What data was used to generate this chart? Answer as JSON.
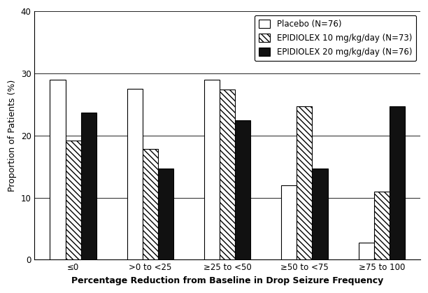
{
  "categories": [
    "≤0",
    ">0 to <25",
    "≥25 to <50",
    "≥50 to <75",
    "≥75 to 100"
  ],
  "placebo": [
    29.0,
    27.5,
    29.0,
    12.0,
    2.7
  ],
  "epidiolex_10": [
    19.2,
    17.8,
    27.4,
    24.7,
    11.0
  ],
  "epidiolex_20": [
    23.7,
    14.7,
    22.4,
    14.7,
    24.7
  ],
  "legend_labels": [
    "Placebo (N=76)",
    "EPIDIOLEX 10 mg/kg/day (N=73)",
    "EPIDIOLEX 20 mg/kg/day (N=76)"
  ],
  "ylabel": "Proportion of Patients (%)",
  "xlabel": "Percentage Reduction from Baseline in Drop Seizure Frequency",
  "ylim": [
    0,
    40
  ],
  "yticks": [
    0,
    10,
    20,
    30,
    40
  ],
  "bar_width": 0.2,
  "placebo_color": "#ffffff",
  "epidiolex_20_color": "#111111",
  "edge_color": "#000000",
  "background_color": "#ffffff",
  "axis_fontsize": 9,
  "tick_fontsize": 8.5,
  "legend_fontsize": 8.5
}
